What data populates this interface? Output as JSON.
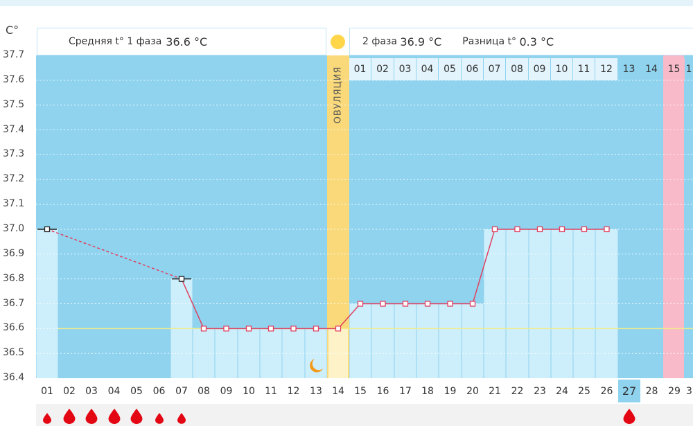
{
  "header": {
    "phase1_label": "Средняя t° 1 фаза",
    "phase1_value": "36.6 °C",
    "phase2_label": "2 фаза",
    "phase2_value": "36.9 °C",
    "diff_label": "Разница t°",
    "diff_value": "0.3 °C"
  },
  "ovulation_label": "ОВУЛЯЦИЯ",
  "colors": {
    "chart_bg": "#8fd3ef",
    "bar": "#cdeefb",
    "line": "#e0415f",
    "ovulation": "#f9d97a",
    "menstruation": "#e30613",
    "coverline": "#f1ec8a"
  },
  "icons": {
    "ovulation_marker": "sun-icon",
    "intercourse_marker": "crescent-moon-icon",
    "period_marker": "blood-drop-icon"
  },
  "phase2_days": [
    "01",
    "02",
    "03",
    "04",
    "05",
    "06",
    "07",
    "08",
    "09",
    "10",
    "11",
    "12",
    "13",
    "14",
    "15",
    "1"
  ],
  "chart_data": {
    "type": "line",
    "ylabel": "C°",
    "ylim": [
      36.4,
      37.7
    ],
    "y_ticks": [
      "37.7",
      "37.6",
      "37.5",
      "37.4",
      "37.3",
      "37.2",
      "37.1",
      "37.0",
      "36.9",
      "36.8",
      "36.7",
      "36.6",
      "36.5",
      "36.4"
    ],
    "x_labels": [
      "01",
      "02",
      "03",
      "04",
      "05",
      "06",
      "07",
      "08",
      "09",
      "10",
      "11",
      "12",
      "13",
      "14",
      "15",
      "16",
      "17",
      "18",
      "19",
      "20",
      "21",
      "22",
      "23",
      "24",
      "25",
      "26",
      "27",
      "28",
      "29",
      "3"
    ],
    "series": [
      {
        "values": [
          37.0,
          null,
          null,
          null,
          null,
          null,
          36.8,
          36.6,
          36.6,
          36.6,
          36.6,
          36.6,
          36.6,
          36.6,
          36.7,
          36.7,
          36.7,
          36.7,
          36.7,
          36.7,
          37.0,
          37.0,
          37.0,
          37.0,
          37.0,
          37.0,
          null,
          null,
          null,
          null
        ]
      }
    ],
    "coverline": 36.6,
    "ovulation_day": "14",
    "highlighted_day": "27",
    "period_days": [
      "01",
      "02",
      "03",
      "04",
      "05",
      "06",
      "07",
      "27"
    ],
    "period_intensity": [
      1,
      2,
      2,
      2,
      2,
      1,
      1,
      2
    ],
    "intercourse_days": [
      "13"
    ],
    "pink_day": "15",
    "grid": true
  }
}
